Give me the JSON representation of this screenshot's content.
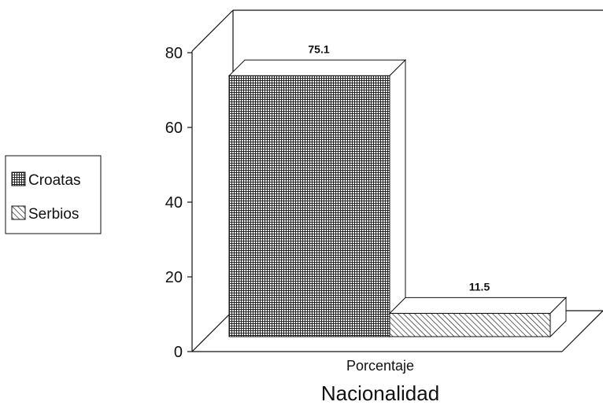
{
  "chart_data": {
    "type": "bar",
    "categories": [
      "Porcentaje"
    ],
    "series": [
      {
        "name": "Croatas",
        "values": [
          75.1
        ],
        "pattern": "grid"
      },
      {
        "name": "Serbios",
        "values": [
          11.5
        ],
        "pattern": "diagonal"
      }
    ],
    "data_labels": [
      "75.1",
      "11.5"
    ],
    "xlabel": "Nacionalidad",
    "ylabel": "",
    "ylim": [
      0,
      80
    ],
    "yticks": [
      "0",
      "20",
      "40",
      "60",
      "80"
    ],
    "grid": false,
    "legend": "left",
    "style": "3d"
  }
}
